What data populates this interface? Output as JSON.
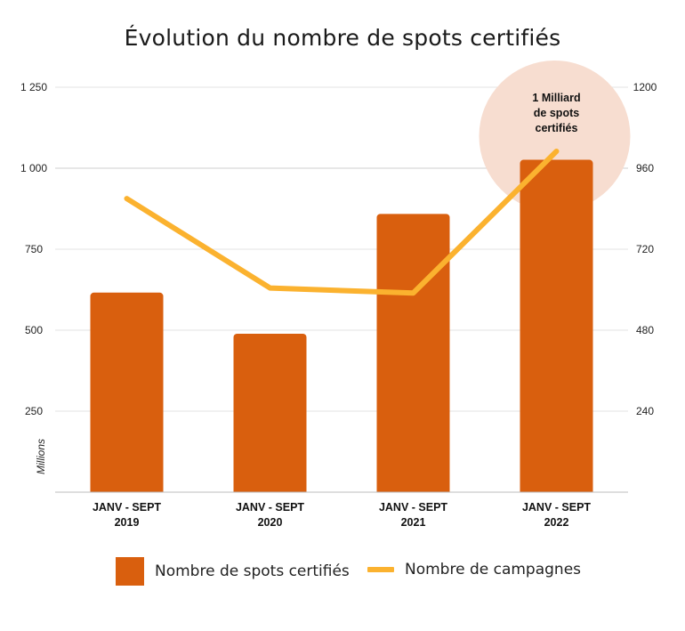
{
  "chart_data": {
    "type": "bar",
    "title": "Évolution du nombre de spots certifiés",
    "categories": [
      [
        "JANV - SEPT",
        "2019"
      ],
      [
        "JANV - SEPT",
        "2020"
      ],
      [
        "JANV - SEPT",
        "2021"
      ],
      [
        "JANV - SEPT",
        "2022"
      ]
    ],
    "ylabel_left": "Millions",
    "y_left": {
      "ylim": [
        0,
        1250
      ],
      "ticks": [
        250,
        500,
        750,
        1000,
        1250
      ],
      "tick_labels": [
        "250",
        "500",
        "750",
        "1 000",
        "1 250"
      ]
    },
    "y_right": {
      "ylim": [
        0,
        1200
      ],
      "ticks": [
        240,
        480,
        720,
        960,
        1200
      ],
      "tick_labels": [
        "240",
        "480",
        "720",
        "960",
        "1200"
      ]
    },
    "grid": true,
    "series": [
      {
        "name": "Nombre de spots certifiés",
        "type": "bar",
        "axis": "left",
        "color": "#d95f0e",
        "values": [
          616,
          489,
          859,
          1026
        ]
      },
      {
        "name": "Nombre de campagnes",
        "type": "line",
        "axis": "right",
        "color": "#fbb22f",
        "values": [
          870,
          605,
          590,
          1010
        ]
      }
    ],
    "annotation": {
      "lines": [
        "1 Milliard",
        "de spots",
        "certifiés"
      ],
      "category_index": 3,
      "highlight_color": "#f7ddd0"
    },
    "legend_position": "bottom"
  }
}
